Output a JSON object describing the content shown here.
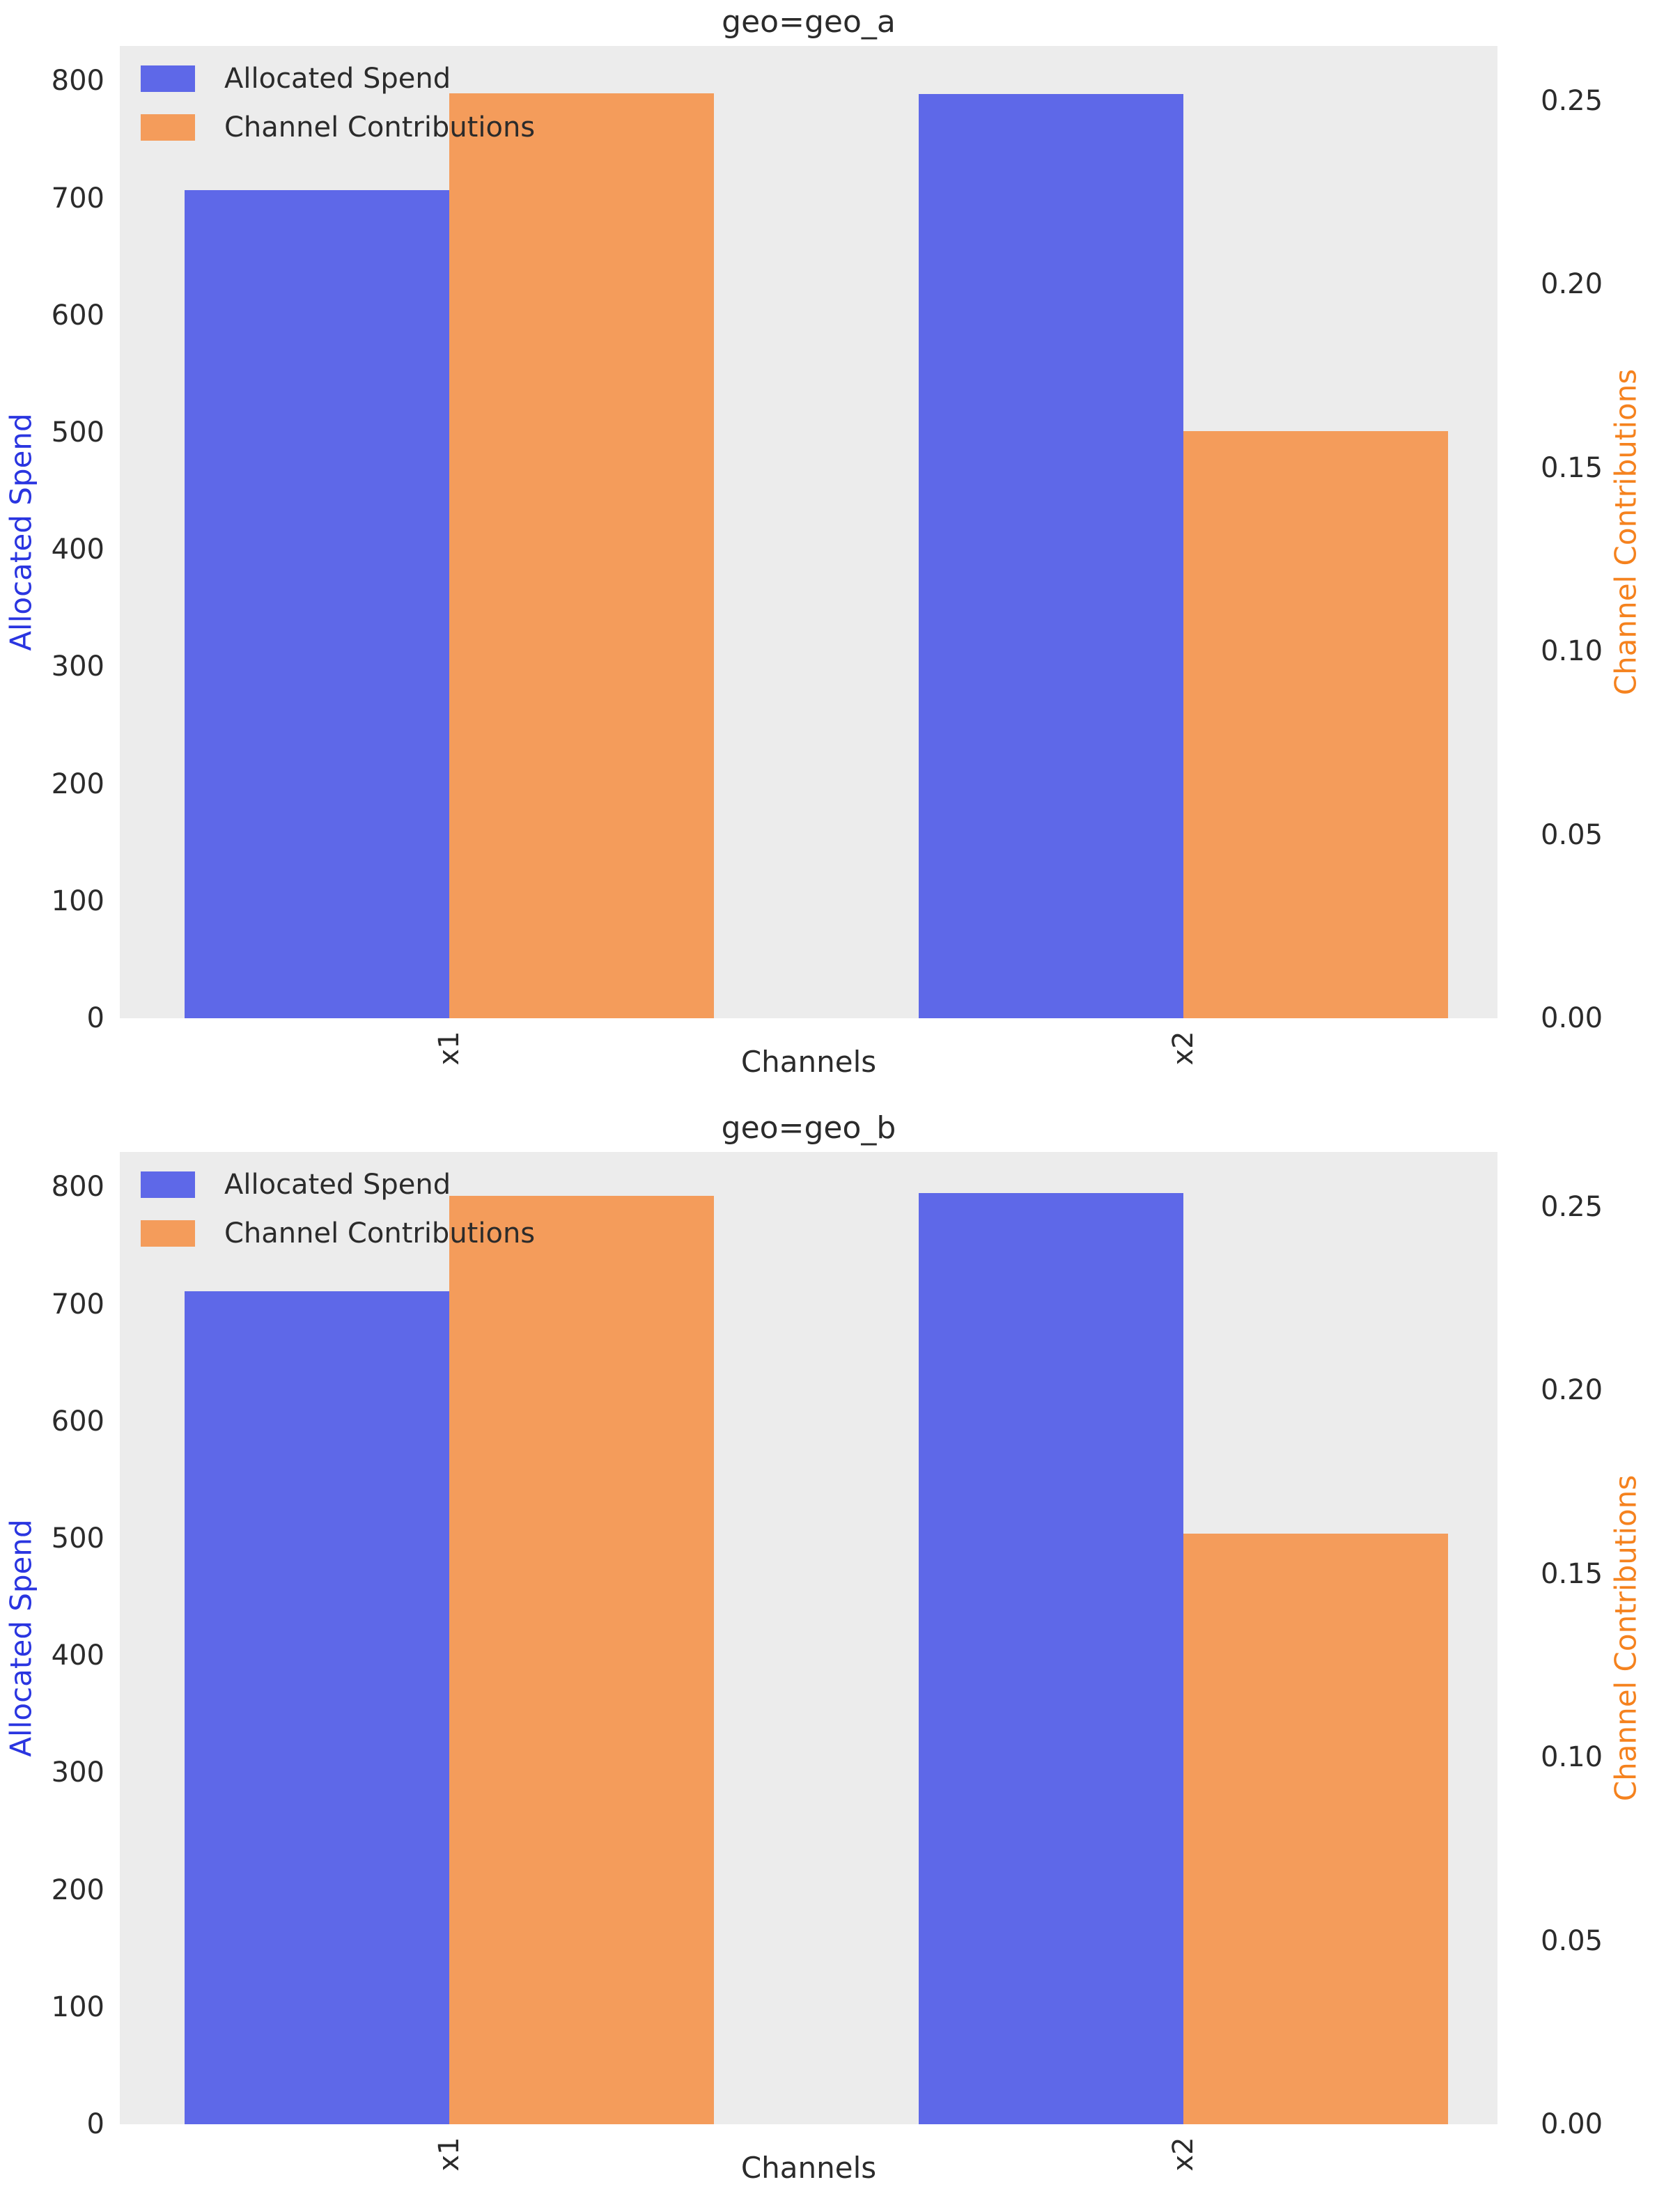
{
  "figure": {
    "background": "#ffffff",
    "plot_background": "#ececec",
    "text_color": "#2b2b2b"
  },
  "colors": {
    "spend_bar": "#5e68e8",
    "contrib_bar": "#f49c5b",
    "spend_label": "#2a35e0",
    "contrib_label": "#f5821e"
  },
  "legend": {
    "items": [
      {
        "label": "Allocated Spend",
        "color_key": "spend_bar"
      },
      {
        "label": "Channel Contributions",
        "color_key": "contrib_bar"
      }
    ]
  },
  "chart_data": [
    {
      "type": "bar",
      "title": "geo=geo_a",
      "xlabel": "Channels",
      "categories": [
        "x1",
        "x2"
      ],
      "left_axis": {
        "label": "Allocated Spend",
        "ticks": [
          0,
          100,
          200,
          300,
          400,
          500,
          600,
          700,
          800
        ],
        "min": 0,
        "max": 830
      },
      "right_axis": {
        "label": "Channel Contributions",
        "ticks": [
          0.0,
          0.05,
          0.1,
          0.15,
          0.2,
          0.25
        ],
        "min": 0,
        "max": 0.265
      },
      "series": [
        {
          "name": "Allocated Spend",
          "axis": "left",
          "values": [
            707,
            789
          ]
        },
        {
          "name": "Channel Contributions",
          "axis": "right",
          "values": [
            0.252,
            0.16
          ]
        }
      ],
      "legend_position": "upper left",
      "grid": false
    },
    {
      "type": "bar",
      "title": "geo=geo_b",
      "xlabel": "Channels",
      "categories": [
        "x1",
        "x2"
      ],
      "left_axis": {
        "label": "Allocated Spend",
        "ticks": [
          0,
          100,
          200,
          300,
          400,
          500,
          600,
          700,
          800
        ],
        "min": 0,
        "max": 830
      },
      "right_axis": {
        "label": "Channel Contributions",
        "ticks": [
          0.0,
          0.05,
          0.1,
          0.15,
          0.2,
          0.25
        ],
        "min": 0,
        "max": 0.265
      },
      "series": [
        {
          "name": "Allocated Spend",
          "axis": "left",
          "values": [
            711,
            795
          ]
        },
        {
          "name": "Channel Contributions",
          "axis": "right",
          "values": [
            0.253,
            0.161
          ]
        }
      ],
      "legend_position": "upper left",
      "grid": false
    }
  ]
}
